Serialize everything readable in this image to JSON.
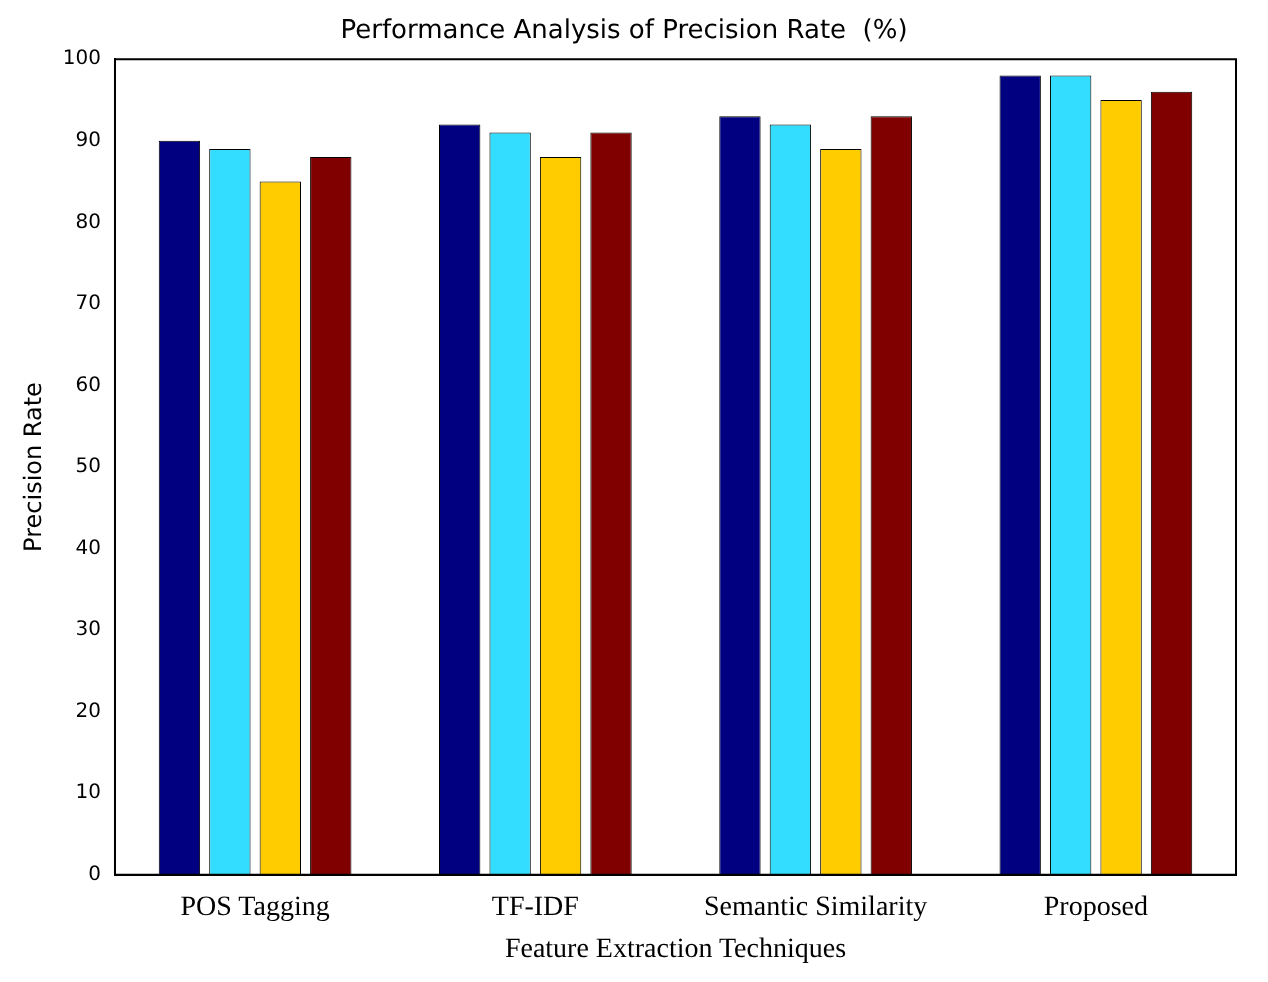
{
  "chart_data": {
    "type": "bar",
    "title": "Performance Analysis of Precision Rate  (%)",
    "xlabel": "Feature Extraction Techniques",
    "ylabel": "Precision Rate",
    "categories": [
      "POS Tagging",
      "TF-IDF",
      "Semantic Similarity",
      "Proposed"
    ],
    "series": [
      {
        "color": "#000080",
        "values": [
          90,
          92,
          93,
          98
        ]
      },
      {
        "color": "#33ddff",
        "values": [
          89,
          91,
          92,
          98
        ]
      },
      {
        "color": "#ffcc00",
        "values": [
          85,
          88,
          89,
          95
        ]
      },
      {
        "color": "#800000",
        "values": [
          88,
          91,
          93,
          96
        ]
      }
    ],
    "ylim": [
      0,
      100
    ],
    "yticks": [
      0,
      10,
      20,
      30,
      40,
      50,
      60,
      70,
      80,
      90,
      100
    ],
    "grid": false,
    "legend": false
  }
}
